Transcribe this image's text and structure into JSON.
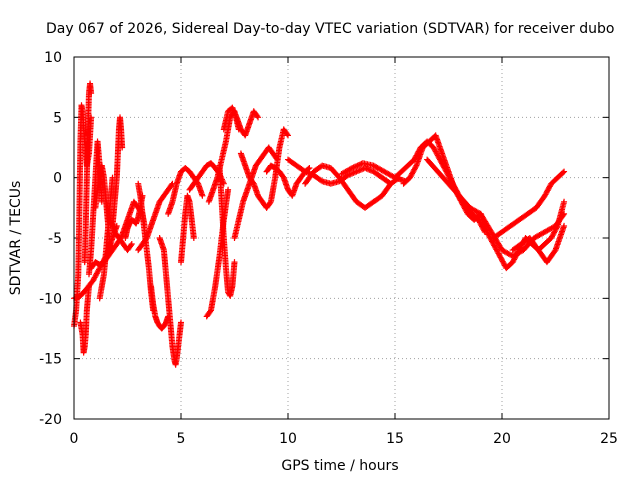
{
  "chart_data": {
    "type": "scatter",
    "title": "Day 067 of 2026, Sidereal Day-to-day VTEC variation (SDTVAR) for receiver dubo",
    "xlabel": "GPS time / hours",
    "ylabel": "SDTVAR / TECUs",
    "xlim": [
      0,
      25
    ],
    "ylim": [
      -20,
      10
    ],
    "xticks": [
      0,
      5,
      10,
      15,
      20,
      25
    ],
    "yticks": [
      -20,
      -15,
      -10,
      -5,
      0,
      5,
      10
    ],
    "grid": true,
    "marker": "+",
    "series": [
      {
        "name": "SDTVAR",
        "color": "#ff0000",
        "segments": [
          {
            "x": [
              0.0,
              0.1,
              0.2,
              0.25,
              0.3,
              0.35,
              0.4,
              0.5,
              0.6,
              0.7,
              0.8
            ],
            "y": [
              -12.3,
              -11.0,
              -8.0,
              -3.0,
              3.0,
              6.0,
              5.5,
              3.0,
              1.0,
              2.0,
              5.0
            ]
          },
          {
            "x": [
              0.3,
              0.4,
              0.45,
              0.5,
              0.55,
              0.6,
              0.7
            ],
            "y": [
              -12.0,
              -13.0,
              -14.5,
              -14.0,
              -13.0,
              -11.0,
              -9.0
            ]
          },
          {
            "x": [
              0.5,
              0.55,
              0.6,
              0.65,
              0.7,
              0.75,
              0.8
            ],
            "y": [
              -7.0,
              -4.0,
              0.0,
              4.0,
              7.0,
              7.8,
              7.0
            ]
          },
          {
            "x": [
              0.0,
              0.3,
              0.6,
              0.9,
              1.2,
              1.5,
              1.8,
              2.0
            ],
            "y": [
              -10.0,
              -9.8,
              -9.2,
              -8.5,
              -7.5,
              -6.5,
              -5.0,
              -4.0
            ]
          },
          {
            "x": [
              0.7,
              0.8,
              0.9,
              1.0,
              1.1,
              1.2,
              1.3
            ],
            "y": [
              -8.0,
              -6.0,
              -3.0,
              0.0,
              3.0,
              1.0,
              -2.0
            ]
          },
          {
            "x": [
              0.8,
              1.0,
              1.2,
              1.4,
              1.6,
              1.8,
              2.0,
              2.2,
              2.4,
              2.6,
              2.8,
              3.0,
              3.2,
              3.3
            ],
            "y": [
              -7.5,
              -7.0,
              -7.2,
              -7.0,
              -6.5,
              -6.0,
              -5.5,
              -5.0,
              -4.0,
              -3.0,
              -2.0,
              -2.5,
              -3.0,
              -4.0
            ]
          },
          {
            "x": [
              1.0,
              1.1,
              1.2,
              1.3,
              1.4,
              1.5,
              1.6,
              1.7
            ],
            "y": [
              -2.5,
              -1.0,
              0.5,
              1.0,
              0.0,
              -2.0,
              -4.0,
              -6.0
            ]
          },
          {
            "x": [
              1.2,
              1.3,
              1.4,
              1.5,
              1.6,
              1.7,
              1.8
            ],
            "y": [
              -10.0,
              -9.0,
              -8.0,
              -6.0,
              -4.0,
              -2.0,
              0.0
            ]
          },
          {
            "x": [
              1.5,
              1.7,
              1.9,
              2.1,
              2.3,
              2.5,
              2.7
            ],
            "y": [
              -2.0,
              -3.5,
              -4.5,
              -5.0,
              -5.5,
              -6.0,
              -5.5
            ]
          },
          {
            "x": [
              1.8,
              1.9,
              2.0,
              2.05,
              2.1,
              2.15,
              2.2,
              2.25
            ],
            "y": [
              -4.0,
              -2.0,
              0.0,
              2.0,
              4.0,
              5.0,
              4.0,
              2.5
            ]
          },
          {
            "x": [
              2.4,
              2.5,
              2.6,
              2.7,
              2.8,
              2.9,
              3.0,
              3.1,
              3.2
            ],
            "y": [
              -5.0,
              -4.2,
              -3.8,
              -3.5,
              -3.6,
              -3.8,
              -3.3,
              -2.5,
              -1.5
            ]
          },
          {
            "x": [
              3.0,
              3.1,
              3.2,
              3.3,
              3.4,
              3.5,
              3.6,
              3.7
            ],
            "y": [
              -0.5,
              -1.5,
              -3.0,
              -4.5,
              -6.0,
              -7.5,
              -9.5,
              -11.0
            ]
          },
          {
            "x": [
              3.6,
              3.7,
              3.8,
              3.9,
              4.0,
              4.1,
              4.2,
              4.3,
              4.4
            ],
            "y": [
              -9.0,
              -10.5,
              -11.5,
              -12.0,
              -12.3,
              -12.5,
              -12.3,
              -12.0,
              -11.5
            ]
          },
          {
            "x": [
              3.0,
              3.2,
              3.4,
              3.6,
              3.8,
              4.0,
              4.2,
              4.4,
              4.6
            ],
            "y": [
              -6.0,
              -5.5,
              -5.0,
              -4.0,
              -3.0,
              -2.0,
              -1.5,
              -1.0,
              -0.5
            ]
          },
          {
            "x": [
              4.0,
              4.2,
              4.3,
              4.4,
              4.5,
              4.6,
              4.7,
              4.75,
              4.8,
              4.9,
              5.0
            ],
            "y": [
              -5.0,
              -6.0,
              -8.0,
              -10.0,
              -12.0,
              -14.0,
              -15.2,
              -15.5,
              -15.0,
              -13.5,
              -12.0
            ]
          },
          {
            "x": [
              4.4,
              4.6,
              4.8,
              5.0,
              5.2,
              5.4,
              5.6,
              5.8,
              6.0
            ],
            "y": [
              -3.0,
              -2.0,
              -0.5,
              0.5,
              0.8,
              0.5,
              0.0,
              -0.5,
              -1.5
            ]
          },
          {
            "x": [
              5.0,
              5.1,
              5.2,
              5.3,
              5.4,
              5.5,
              5.6
            ],
            "y": [
              -7.0,
              -5.0,
              -3.0,
              -1.5,
              -2.0,
              -3.5,
              -5.0
            ]
          },
          {
            "x": [
              5.4,
              5.6,
              5.8,
              6.0,
              6.2,
              6.4,
              6.6,
              6.8,
              7.0
            ],
            "y": [
              -1.0,
              -0.5,
              0.0,
              0.5,
              1.0,
              1.2,
              0.8,
              0.3,
              -0.5
            ]
          },
          {
            "x": [
              6.2,
              6.4,
              6.6,
              6.8,
              7.0,
              7.2
            ],
            "y": [
              -11.5,
              -11.0,
              -9.0,
              -6.5,
              -3.5,
              -1.0
            ]
          },
          {
            "x": [
              6.3,
              6.5,
              6.7,
              6.9,
              7.1,
              7.3,
              7.5,
              7.7
            ],
            "y": [
              -2.0,
              -1.0,
              0.0,
              1.5,
              3.0,
              5.0,
              5.5,
              4.0
            ]
          },
          {
            "x": [
              6.8,
              6.9,
              7.0,
              7.1,
              7.2,
              7.3,
              7.4,
              7.5
            ],
            "y": [
              1.0,
              -2.0,
              -5.0,
              -7.5,
              -9.5,
              -9.8,
              -9.0,
              -7.0
            ]
          },
          {
            "x": [
              7.0,
              7.2,
              7.4,
              7.6,
              7.8,
              8.0,
              8.2,
              8.4,
              8.6
            ],
            "y": [
              4.0,
              5.5,
              5.8,
              5.0,
              4.0,
              3.5,
              4.5,
              5.5,
              5.0
            ]
          },
          {
            "x": [
              7.5,
              7.7,
              7.9,
              8.1,
              8.3,
              8.5,
              8.7,
              8.9,
              9.1,
              9.3,
              9.5
            ],
            "y": [
              -5.0,
              -3.5,
              -2.0,
              -1.0,
              0.0,
              1.0,
              1.5,
              2.0,
              2.5,
              2.0,
              1.5
            ]
          },
          {
            "x": [
              7.8,
              8.0,
              8.2,
              8.4,
              8.6,
              8.8,
              9.0,
              9.2,
              9.4,
              9.6,
              9.8,
              10.0
            ],
            "y": [
              2.0,
              1.0,
              0.0,
              -0.5,
              -1.5,
              -2.0,
              -2.5,
              -2.0,
              0.0,
              2.5,
              4.0,
              3.5
            ]
          },
          {
            "x": [
              9.0,
              9.2,
              9.4,
              9.6,
              9.8,
              10.0,
              10.2,
              10.4,
              10.6,
              10.8,
              11.0
            ],
            "y": [
              0.5,
              1.0,
              0.8,
              0.5,
              0.0,
              -1.0,
              -1.5,
              -0.5,
              0.0,
              0.5,
              0.8
            ]
          },
          {
            "x": [
              10.0,
              10.4,
              10.8,
              11.2,
              11.6,
              12.0,
              12.4,
              12.8,
              13.2,
              13.6,
              14.0,
              14.4,
              14.8
            ],
            "y": [
              1.5,
              1.0,
              0.5,
              0.2,
              -0.3,
              -0.5,
              -0.3,
              0.2,
              0.5,
              0.8,
              0.5,
              0.0,
              -0.5
            ]
          },
          {
            "x": [
              10.8,
              11.2,
              11.6,
              12.0,
              12.4,
              12.8,
              13.2,
              13.6,
              14.0,
              14.4,
              14.8,
              15.2
            ],
            "y": [
              -0.5,
              0.5,
              1.0,
              0.8,
              0.0,
              -1.0,
              -2.0,
              -2.5,
              -2.0,
              -1.5,
              -0.5,
              0.0
            ]
          },
          {
            "x": [
              12.5,
              13.0,
              13.5,
              14.0,
              14.5,
              15.0,
              15.5
            ],
            "y": [
              0.3,
              0.8,
              1.2,
              1.0,
              0.5,
              0.0,
              -0.3
            ]
          },
          {
            "x": [
              15.0,
              15.3,
              15.6,
              15.9,
              16.2,
              16.5,
              16.8,
              17.1,
              17.4,
              17.7,
              18.0,
              18.3,
              18.6,
              18.9,
              19.2
            ],
            "y": [
              0.0,
              0.5,
              1.0,
              1.5,
              2.5,
              3.0,
              2.5,
              1.5,
              0.5,
              -0.5,
              -1.5,
              -2.5,
              -3.0,
              -3.5,
              -4.5
            ]
          },
          {
            "x": [
              15.4,
              15.7,
              16.0,
              16.3,
              16.6,
              16.9,
              17.2,
              17.5,
              17.8,
              18.1,
              18.4,
              18.7,
              19.0
            ],
            "y": [
              -0.5,
              0.0,
              1.0,
              2.5,
              3.0,
              3.5,
              2.0,
              0.5,
              -1.0,
              -2.0,
              -3.0,
              -3.5,
              -3.0
            ]
          },
          {
            "x": [
              16.5,
              17.0,
              17.5,
              18.0,
              18.5,
              19.0,
              19.5,
              20.0,
              20.5,
              21.0,
              21.5,
              22.0,
              22.5,
              22.9
            ],
            "y": [
              1.5,
              0.5,
              -0.5,
              -1.5,
              -2.5,
              -3.0,
              -4.5,
              -6.0,
              -6.5,
              -6.0,
              -5.0,
              -4.5,
              -4.0,
              -3.0
            ]
          },
          {
            "x": [
              19.0,
              19.3,
              19.6,
              19.9,
              20.2,
              20.5,
              20.8,
              21.1,
              21.4,
              21.7,
              22.0,
              22.3,
              22.6,
              22.9
            ],
            "y": [
              -3.0,
              -4.5,
              -5.5,
              -6.5,
              -7.5,
              -7.0,
              -6.0,
              -5.0,
              -5.5,
              -6.0,
              -5.5,
              -5.0,
              -4.0,
              -2.0
            ]
          },
          {
            "x": [
              19.6,
              20.0,
              20.4,
              20.8,
              21.2,
              21.6,
              22.0,
              22.3,
              22.6,
              22.9
            ],
            "y": [
              -5.0,
              -4.5,
              -4.0,
              -3.5,
              -3.0,
              -2.5,
              -1.5,
              -0.5,
              0.0,
              0.5
            ]
          },
          {
            "x": [
              20.5,
              20.9,
              21.3,
              21.7,
              22.1,
              22.5,
              22.9
            ],
            "y": [
              -6.0,
              -5.5,
              -5.0,
              -6.0,
              -7.0,
              -6.0,
              -4.0
            ]
          }
        ]
      }
    ]
  }
}
